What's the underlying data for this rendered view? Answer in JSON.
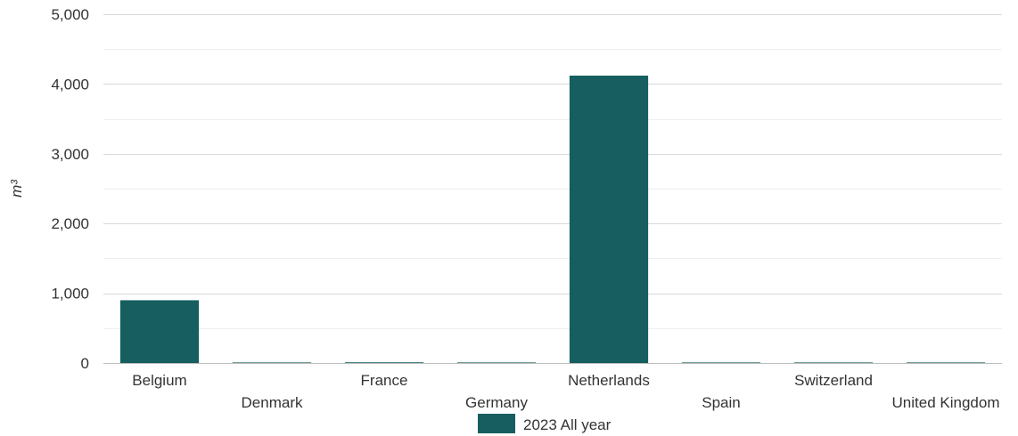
{
  "chart_data": {
    "type": "bar",
    "categories": [
      "Belgium",
      "Denmark",
      "France",
      "Germany",
      "Netherlands",
      "Spain",
      "Switzerland",
      "United Kingdom"
    ],
    "series": [
      {
        "name": "2023 All year",
        "values": [
          900,
          8,
          10,
          8,
          4120,
          8,
          8,
          8
        ]
      }
    ],
    "xlabel": "",
    "ylabel": "m³",
    "ylim": [
      0,
      5000
    ],
    "yticks": [
      0,
      1000,
      2000,
      3000,
      4000,
      5000
    ],
    "ytick_labels": [
      "0",
      "1,000",
      "2,000",
      "3,000",
      "4,000",
      "5,000"
    ],
    "grid": true,
    "legend": "bottom",
    "colors": {
      "bar": "#165e5f",
      "grid_major": "#d9d9d9",
      "grid_minor": "#efefef",
      "baseline": "#bdbdbd"
    }
  }
}
